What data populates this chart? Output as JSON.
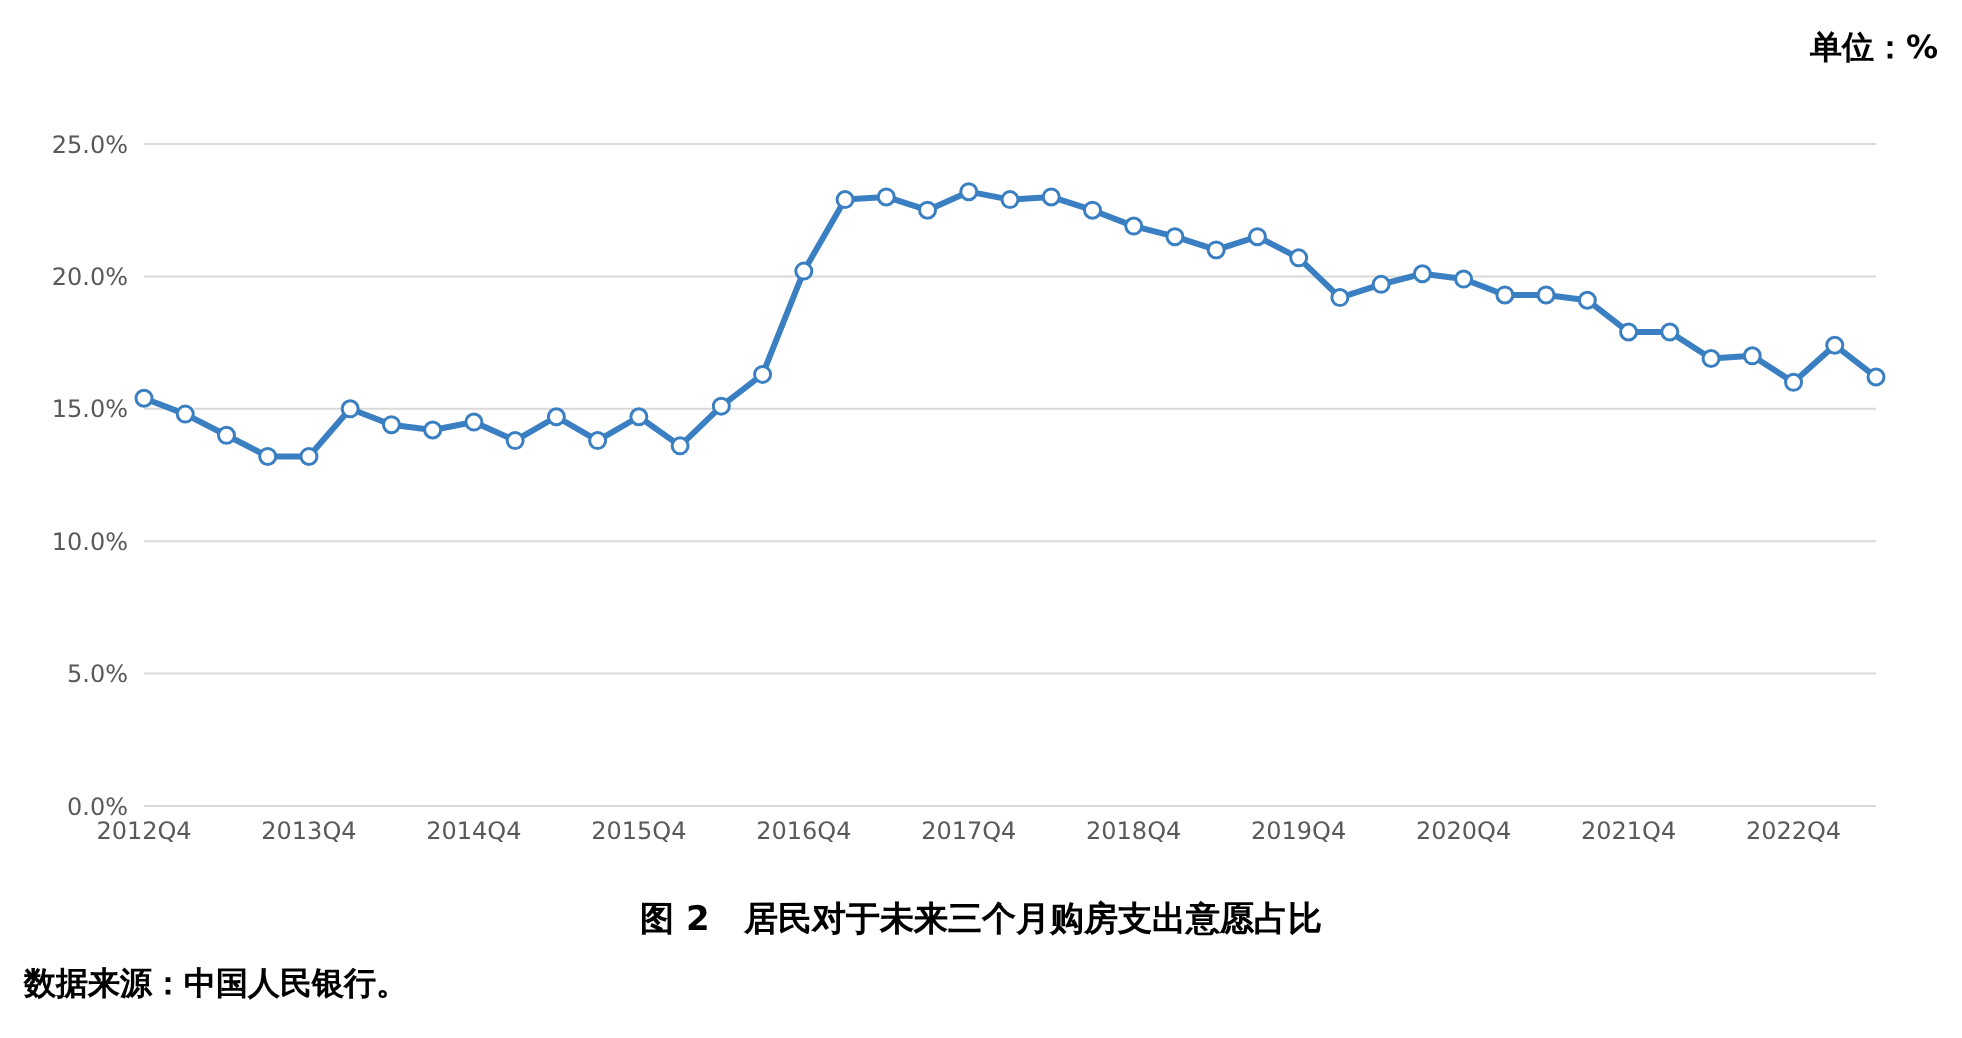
{
  "chart_data": {
    "type": "line",
    "title": "图 2　居民对于未来三个月购房支出意愿占比",
    "annotations": [
      "单位：%",
      "数据来源：中国人民银行。"
    ],
    "categories": [
      "2012Q4",
      null,
      null,
      null,
      "2013Q4",
      null,
      null,
      null,
      "2014Q4",
      null,
      null,
      null,
      "2015Q4",
      null,
      null,
      null,
      "2016Q4",
      null,
      null,
      null,
      "2017Q4",
      null,
      null,
      null,
      "2018Q4",
      null,
      null,
      null,
      "2019Q4",
      null,
      null,
      null,
      "2020Q4",
      null,
      null,
      null,
      "2021Q4",
      null,
      null,
      null,
      "2022Q4",
      null,
      null
    ],
    "series": [
      {
        "color": "#3a7fc1",
        "values": [
          15.4,
          14.8,
          14.0,
          13.2,
          13.2,
          15.0,
          14.4,
          14.2,
          14.5,
          13.8,
          14.7,
          13.8,
          14.7,
          13.6,
          15.1,
          16.3,
          20.2,
          22.9,
          23.0,
          22.5,
          23.2,
          22.9,
          23.0,
          22.5,
          21.9,
          21.5,
          21.0,
          21.5,
          20.7,
          19.2,
          19.7,
          20.1,
          19.9,
          19.3,
          19.3,
          19.1,
          17.9,
          17.9,
          16.9,
          17.0,
          16.0,
          17.4,
          16.2
        ]
      }
    ],
    "ylim": [
      0,
      25
    ],
    "yticks": [
      {
        "value": 0,
        "label": "0.0%"
      },
      {
        "value": 5,
        "label": "5.0%"
      },
      {
        "value": 10,
        "label": "10.0%"
      },
      {
        "value": 15,
        "label": "15.0%"
      },
      {
        "value": 20,
        "label": "20.0%"
      },
      {
        "value": 25,
        "label": "25.0%"
      }
    ],
    "grid": "y",
    "marker": "circle",
    "line_style": "solid",
    "legend": false
  }
}
